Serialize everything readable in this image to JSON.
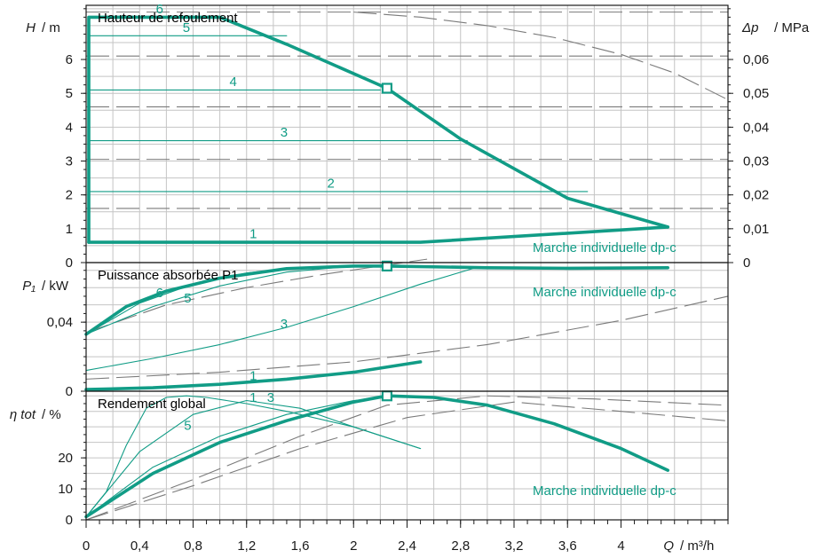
{
  "colors": {
    "series": "#119c86",
    "reference": "#7a7a7a",
    "grid": "#c4c4c4",
    "axis": "#1a1a1a"
  },
  "x_axis": {
    "symbol": "Q",
    "unit": "/ m³/h",
    "range": [
      0,
      4.8
    ],
    "ticks": [
      0,
      0.4,
      0.8,
      1.2,
      1.6,
      2,
      2.4,
      2.8,
      3.2,
      3.6,
      4
    ],
    "tick_labels": [
      "0",
      "0,4",
      "0,8",
      "1,2",
      "1,6",
      "2",
      "2,4",
      "2,8",
      "3,2",
      "3,6",
      "4"
    ]
  },
  "chart_data": [
    {
      "type": "line",
      "title": "Hauteur de refoulement",
      "annotation": "Marche individuelle dp-c",
      "y_axis": {
        "symbol": "H",
        "unit": "/ m",
        "range": [
          0,
          7.6
        ],
        "ticks": [
          0,
          1,
          2,
          3,
          4,
          5,
          6
        ],
        "tick_labels": [
          "0",
          "1",
          "2",
          "3",
          "4",
          "5",
          "6"
        ]
      },
      "y2_axis": {
        "symbol": "Δp",
        "unit": "/ MPa",
        "range": [
          0,
          0.076
        ],
        "ticks": [
          0,
          0.01,
          0.02,
          0.03,
          0.04,
          0.05,
          0.06
        ],
        "tick_labels": [
          "0",
          "0,01",
          "0,02",
          "0,03",
          "0,04",
          "0,05",
          "0,06"
        ]
      },
      "series": [
        {
          "level": "6",
          "x": [
            0.02,
            0.02,
            1.0,
            1.5,
            2.25,
            2.8,
            3.6,
            4.35
          ],
          "y": [
            0.6,
            7.25,
            7.25,
            6.45,
            5.15,
            3.65,
            1.9,
            1.05
          ],
          "weight": "thick"
        },
        {
          "level": "5",
          "x": [
            0.02,
            1.5
          ],
          "y": [
            6.7,
            6.7
          ],
          "weight": "thin"
        },
        {
          "level": "4",
          "x": [
            0.02,
            2.2
          ],
          "y": [
            5.1,
            5.1
          ],
          "weight": "thin"
        },
        {
          "level": "3",
          "x": [
            0.02,
            2.85
          ],
          "y": [
            3.6,
            3.6
          ],
          "weight": "thin"
        },
        {
          "level": "2",
          "x": [
            0.02,
            3.75
          ],
          "y": [
            2.1,
            2.1
          ],
          "weight": "thin"
        },
        {
          "level": "1",
          "x": [
            0.02,
            2.5,
            4.35
          ],
          "y": [
            0.6,
            0.6,
            1.05
          ],
          "weight": "thick"
        }
      ],
      "reference_curve": {
        "x": [
          2.0,
          2.5,
          3.0,
          3.5,
          4.0,
          4.4,
          4.78
        ],
        "y": [
          7.4,
          7.25,
          7.0,
          6.65,
          6.15,
          5.6,
          4.85
        ]
      },
      "reference_levels": [
        1.6,
        3.05,
        4.6,
        6.1,
        7.4
      ],
      "marker": {
        "x": 2.25,
        "y": 5.15
      },
      "labels": [
        {
          "text": "6",
          "x": 0.55,
          "y": 7.5
        },
        {
          "text": "5",
          "x": 0.75,
          "y": 6.95
        },
        {
          "text": "4",
          "x": 1.1,
          "y": 5.35
        },
        {
          "text": "3",
          "x": 1.48,
          "y": 3.85
        },
        {
          "text": "2",
          "x": 1.83,
          "y": 2.35
        },
        {
          "text": "1",
          "x": 1.25,
          "y": 0.85
        }
      ]
    },
    {
      "type": "line",
      "title": "Puissance absorbée P1",
      "annotation": "Marche individuelle dp-c",
      "y_axis": {
        "symbol": "P₁",
        "unit": "/ kW",
        "range": [
          0,
          0.0745
        ],
        "ticks": [
          0,
          0.04
        ],
        "tick_labels": [
          "0",
          "0,04"
        ]
      },
      "series": [
        {
          "level": "6",
          "x": [
            0,
            0.3,
            0.6,
            1.0,
            1.5,
            2.0,
            2.25,
            3.0,
            3.6,
            4.35
          ],
          "y": [
            0.033,
            0.049,
            0.058,
            0.0655,
            0.071,
            0.0725,
            0.0725,
            0.0715,
            0.0712,
            0.0715
          ],
          "weight": "thick"
        },
        {
          "level": "5",
          "x": [
            0,
            0.4,
            0.8,
            1.2,
            1.5
          ],
          "y": [
            0.033,
            0.051,
            0.062,
            0.0685,
            0.071
          ],
          "weight": "thin"
        },
        {
          "level": "4",
          "x": [
            0,
            0.5,
            1.0,
            1.5,
            2.0,
            2.2
          ],
          "y": [
            0.033,
            0.049,
            0.061,
            0.069,
            0.0725,
            0.0728
          ],
          "weight": "thin"
        },
        {
          "level": "3",
          "x": [
            0,
            0.5,
            1.0,
            1.5,
            2.0,
            2.5,
            2.9
          ],
          "y": [
            0.012,
            0.019,
            0.027,
            0.037,
            0.049,
            0.062,
            0.0712
          ],
          "weight": "thin"
        },
        {
          "level": "1",
          "x": [
            0,
            0.5,
            1.0,
            1.5,
            2.0,
            2.5
          ],
          "y": [
            0.001,
            0.002,
            0.004,
            0.007,
            0.011,
            0.017
          ],
          "weight": "thick"
        }
      ],
      "reference_curves": [
        {
          "x": [
            0,
            0.6,
            1.2,
            1.8,
            2.2,
            2.55
          ],
          "y": [
            0.034,
            0.05,
            0.06,
            0.068,
            0.0725,
            0.0765
          ]
        },
        {
          "x": [
            0,
            1.0,
            2.0,
            3.0,
            4.0,
            4.8
          ],
          "y": [
            0.007,
            0.011,
            0.017,
            0.027,
            0.041,
            0.055
          ]
        }
      ],
      "marker": {
        "x": 2.25,
        "y": 0.0725
      },
      "labels": [
        {
          "text": "6",
          "x": 0.55,
          "y": 0.057
        },
        {
          "text": "5",
          "x": 0.76,
          "y": 0.054
        },
        {
          "text": "3",
          "x": 1.48,
          "y": 0.039
        },
        {
          "text": "1",
          "x": 1.25,
          "y": 0.009
        }
      ]
    },
    {
      "type": "line",
      "title": "Rendement global",
      "annotation": "Marche individuelle dp-c",
      "y_axis": {
        "symbol": "η tot",
        "unit": "/ %",
        "range": [
          0,
          41.5
        ],
        "ticks": [
          0,
          10,
          20
        ],
        "tick_labels": [
          "0",
          "10",
          "20"
        ]
      },
      "series": [
        {
          "level": "6",
          "x": [
            0,
            0.5,
            1.0,
            1.5,
            2.0,
            2.25,
            2.6,
            3.0,
            3.5,
            4.0,
            4.35
          ],
          "y": [
            1,
            15,
            25,
            32,
            38,
            40,
            39.5,
            37,
            31,
            23,
            16
          ],
          "weight": "thick"
        },
        {
          "level": "5",
          "x": [
            0,
            0.5,
            1.0,
            1.5,
            2.0,
            2.25
          ],
          "y": [
            1,
            17,
            27,
            34,
            38.5,
            39.5
          ],
          "weight": "thin"
        },
        {
          "level": "3",
          "x": [
            0,
            0.4,
            0.8,
            1.2,
            1.6,
            2.0,
            2.5
          ],
          "y": [
            1,
            22,
            34,
            38.5,
            36,
            30,
            23
          ],
          "weight": "thin"
        },
        {
          "level": "1",
          "x": [
            0,
            0.15,
            0.3,
            0.45,
            0.6,
            0.75,
            0.9,
            1.05,
            1.2,
            1.5,
            2.0,
            2.5
          ],
          "y": [
            1,
            9,
            24,
            36,
            39.5,
            40,
            39.5,
            38.5,
            37.5,
            35,
            30,
            23
          ],
          "weight": "thin"
        }
      ],
      "reference_curves": [
        {
          "x": [
            0,
            0.8,
            1.6,
            2.25,
            3.0,
            3.8,
            4.78
          ],
          "y": [
            0,
            13,
            27,
            37,
            40,
            39,
            37
          ]
        },
        {
          "x": [
            0,
            0.8,
            1.6,
            2.4,
            3.2,
            4.0,
            4.78
          ],
          "y": [
            0,
            11,
            23,
            33,
            38,
            35,
            32
          ]
        }
      ],
      "marker": {
        "x": 2.25,
        "y": 40
      },
      "labels": [
        {
          "text": "1",
          "x": 1.25,
          "y": 39.5
        },
        {
          "text": "3",
          "x": 1.38,
          "y": 39.5
        },
        {
          "text": "5",
          "x": 0.76,
          "y": 30.5
        }
      ]
    }
  ]
}
